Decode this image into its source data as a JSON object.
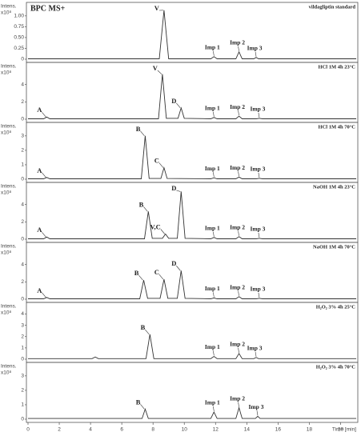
{
  "chart_data": [
    {
      "type": "line",
      "trace_label": "BPC MS+",
      "title": "vildagliptin standard",
      "y_label": "Intens.",
      "y_unit": "x10⁸",
      "x": [
        0,
        8.4,
        8.7,
        9.0,
        11.7,
        11.9,
        12.1,
        13.3,
        13.5,
        13.7,
        14.45,
        14.6,
        14.75,
        21
      ],
      "y": [
        0.01,
        0.01,
        1.13,
        0.01,
        0.01,
        0.06,
        0.01,
        0.01,
        0.17,
        0.01,
        0.01,
        0.04,
        0.01,
        0.01
      ],
      "color": "#333333",
      "xlim": [
        0,
        21
      ],
      "ylim": [
        0,
        1.2
      ],
      "yticks": [
        0,
        0.25,
        {
          "value": 0.5,
          "label": "0.50"
        },
        0.75,
        {
          "value": 1,
          "label": "1.00"
        }
      ],
      "annotations": [
        {
          "text": "V",
          "x": 8.7,
          "y": 1.13
        },
        {
          "text": "Imp 1",
          "x": 11.9,
          "y": 0.06
        },
        {
          "text": "Imp 2",
          "x": 13.5,
          "y": 0.17
        },
        {
          "text": "Imp 3",
          "x": 14.6,
          "y": 0.04
        }
      ]
    },
    {
      "type": "line",
      "title": "HCl 1M 4h 23°C",
      "y_label": "Intens.",
      "y_unit": "x10⁸",
      "x": [
        0,
        1.0,
        1.2,
        1.4,
        8.35,
        8.6,
        8.85,
        9.6,
        9.8,
        10.0,
        11.7,
        11.9,
        12.1,
        13.3,
        13.5,
        13.7,
        14.6,
        14.8,
        15.0,
        21
      ],
      "y": [
        0.05,
        0.05,
        0.25,
        0.05,
        0.05,
        5.2,
        0.1,
        0.1,
        1.3,
        0.1,
        0.05,
        0.2,
        0.05,
        0.05,
        0.35,
        0.05,
        0.05,
        0.1,
        0.05,
        0.05
      ],
      "color": "#333333",
      "xlim": [
        0,
        21
      ],
      "ylim": [
        0,
        6
      ],
      "yticks": [
        0,
        2,
        4
      ],
      "annotations": [
        {
          "text": "A",
          "x": 1.2,
          "y": 0.25
        },
        {
          "text": "V",
          "x": 8.6,
          "y": 5.2
        },
        {
          "text": "D",
          "x": 9.8,
          "y": 1.3
        },
        {
          "text": "Imp 1",
          "x": 11.9,
          "y": 0.2
        },
        {
          "text": "Imp 2",
          "x": 13.5,
          "y": 0.35
        },
        {
          "text": "Imp 3",
          "x": 14.8,
          "y": 0.1
        }
      ]
    },
    {
      "type": "line",
      "title": "HCl 1M 4h 70°C",
      "y_label": "Intens.",
      "y_unit": "x10⁸",
      "x": [
        0,
        1.0,
        1.2,
        1.4,
        7.25,
        7.5,
        7.75,
        8.5,
        8.7,
        8.9,
        11.7,
        11.9,
        12.1,
        13.3,
        13.5,
        13.7,
        14.6,
        14.8,
        15.0,
        21
      ],
      "y": [
        0.03,
        0.03,
        0.12,
        0.03,
        0.03,
        3.0,
        0.05,
        0.05,
        0.8,
        0.05,
        0.03,
        0.1,
        0.03,
        0.03,
        0.15,
        0.03,
        0.03,
        0.06,
        0.03,
        0.03
      ],
      "color": "#333333",
      "xlim": [
        0,
        21
      ],
      "ylim": [
        0,
        3.6
      ],
      "yticks": [
        0,
        1,
        2,
        3
      ],
      "annotations": [
        {
          "text": "A",
          "x": 1.2,
          "y": 0.12
        },
        {
          "text": "B",
          "x": 7.5,
          "y": 3.0
        },
        {
          "text": "C",
          "x": 8.7,
          "y": 0.8
        },
        {
          "text": "Imp 1",
          "x": 11.9,
          "y": 0.1
        },
        {
          "text": "Imp 2",
          "x": 13.5,
          "y": 0.15
        },
        {
          "text": "Imp 3",
          "x": 14.8,
          "y": 0.06
        }
      ]
    },
    {
      "type": "line",
      "title": "NaOH 1M 4h 23°C",
      "y_label": "Intens.",
      "y_unit": "x10⁸",
      "x": [
        0,
        1.0,
        1.2,
        1.4,
        7.45,
        7.7,
        7.95,
        8.6,
        8.8,
        9.0,
        9.55,
        9.8,
        10.05,
        11.7,
        11.9,
        12.1,
        13.3,
        13.5,
        13.7,
        14.6,
        14.8,
        15.0,
        21
      ],
      "y": [
        0.05,
        0.05,
        0.25,
        0.05,
        0.05,
        3.2,
        0.1,
        0.1,
        0.6,
        0.1,
        0.1,
        5.5,
        0.1,
        0.05,
        0.2,
        0.05,
        0.05,
        0.3,
        0.05,
        0.05,
        0.1,
        0.05,
        0.05
      ],
      "color": "#333333",
      "xlim": [
        0,
        21
      ],
      "ylim": [
        0,
        6
      ],
      "yticks": [
        0,
        2,
        4
      ],
      "annotations": [
        {
          "text": "A",
          "x": 1.2,
          "y": 0.25
        },
        {
          "text": "B",
          "x": 7.7,
          "y": 3.2
        },
        {
          "text": "V,C",
          "x": 8.8,
          "y": 0.6
        },
        {
          "text": "D",
          "x": 9.8,
          "y": 5.5
        },
        {
          "text": "Imp 1",
          "x": 11.9,
          "y": 0.2
        },
        {
          "text": "Imp 2",
          "x": 13.5,
          "y": 0.3
        },
        {
          "text": "Imp 3",
          "x": 14.8,
          "y": 0.1
        }
      ]
    },
    {
      "type": "line",
      "title": "NaOH 1M 4h 70°C",
      "y_label": "Intens.",
      "y_unit": "x10⁸",
      "x": [
        0,
        1.0,
        1.2,
        1.4,
        7.15,
        7.4,
        7.65,
        8.45,
        8.7,
        8.95,
        9.55,
        9.8,
        10.05,
        11.7,
        11.9,
        12.1,
        13.3,
        13.5,
        13.7,
        14.6,
        14.8,
        15.0,
        21
      ],
      "y": [
        0.05,
        0.05,
        0.2,
        0.05,
        0.05,
        2.2,
        0.1,
        0.1,
        2.3,
        0.1,
        0.1,
        3.3,
        0.1,
        0.05,
        0.15,
        0.05,
        0.05,
        0.3,
        0.05,
        0.05,
        0.1,
        0.05,
        0.05
      ],
      "color": "#333333",
      "xlim": [
        0,
        21
      ],
      "ylim": [
        0,
        6
      ],
      "yticks": [
        0,
        2,
        4
      ],
      "annotations": [
        {
          "text": "A",
          "x": 1.2,
          "y": 0.2
        },
        {
          "text": "B",
          "x": 7.4,
          "y": 2.2
        },
        {
          "text": "C",
          "x": 8.7,
          "y": 2.3
        },
        {
          "text": "D",
          "x": 9.8,
          "y": 3.3
        },
        {
          "text": "Imp 1",
          "x": 11.9,
          "y": 0.15
        },
        {
          "text": "Imp 2",
          "x": 13.5,
          "y": 0.3
        },
        {
          "text": "Imp 3",
          "x": 14.8,
          "y": 0.1
        }
      ]
    },
    {
      "type": "line",
      "title": "H₂O₂ 3% 4h 25°C",
      "y_label": "Intens.",
      "y_unit": "x10⁸",
      "x": [
        0,
        4.1,
        4.3,
        4.5,
        7.55,
        7.8,
        8.05,
        11.7,
        11.9,
        12.1,
        13.3,
        13.5,
        13.7,
        14.45,
        14.6,
        14.75,
        21
      ],
      "y": [
        0.05,
        0.05,
        0.2,
        0.05,
        0.05,
        2.2,
        0.05,
        0.05,
        0.25,
        0.05,
        0.05,
        0.5,
        0.05,
        0.05,
        0.15,
        0.05,
        0.05
      ],
      "color": "#333333",
      "xlim": [
        0,
        21
      ],
      "ylim": [
        0,
        4.6
      ],
      "yticks": [
        0,
        1,
        2,
        3,
        4
      ],
      "annotations": [
        {
          "text": "B",
          "x": 7.8,
          "y": 2.2
        },
        {
          "text": "Imp 1",
          "x": 11.9,
          "y": 0.25
        },
        {
          "text": "Imp 2",
          "x": 13.5,
          "y": 0.5
        },
        {
          "text": "Imp 3",
          "x": 14.6,
          "y": 0.15
        }
      ]
    },
    {
      "type": "line",
      "title": "H₂O₂ 3% 4h 70°C",
      "y_label": "Intens.",
      "y_unit": "x10⁸",
      "x": [
        0,
        7.3,
        7.5,
        7.7,
        11.7,
        11.9,
        12.1,
        13.3,
        13.5,
        13.7,
        14.55,
        14.7,
        14.85,
        21
      ],
      "y": [
        0.05,
        0.05,
        0.7,
        0.05,
        0.05,
        0.5,
        0.05,
        0.05,
        0.8,
        0.05,
        0.05,
        0.2,
        0.05,
        0.05
      ],
      "color": "#333333",
      "xlim": [
        0,
        21
      ],
      "ylim": [
        0,
        3.6
      ],
      "yticks": [
        0,
        1,
        2,
        3
      ],
      "xticks": [
        0,
        2,
        4,
        6,
        8,
        10,
        12,
        14,
        16,
        18,
        20
      ],
      "x_label": "Time [min]",
      "annotations": [
        {
          "text": "B",
          "x": 7.5,
          "y": 0.7
        },
        {
          "text": "Imp 1",
          "x": 11.9,
          "y": 0.5
        },
        {
          "text": "Imp 2",
          "x": 13.5,
          "y": 0.8
        },
        {
          "text": "Imp 3",
          "x": 14.7,
          "y": 0.2
        }
      ]
    }
  ]
}
